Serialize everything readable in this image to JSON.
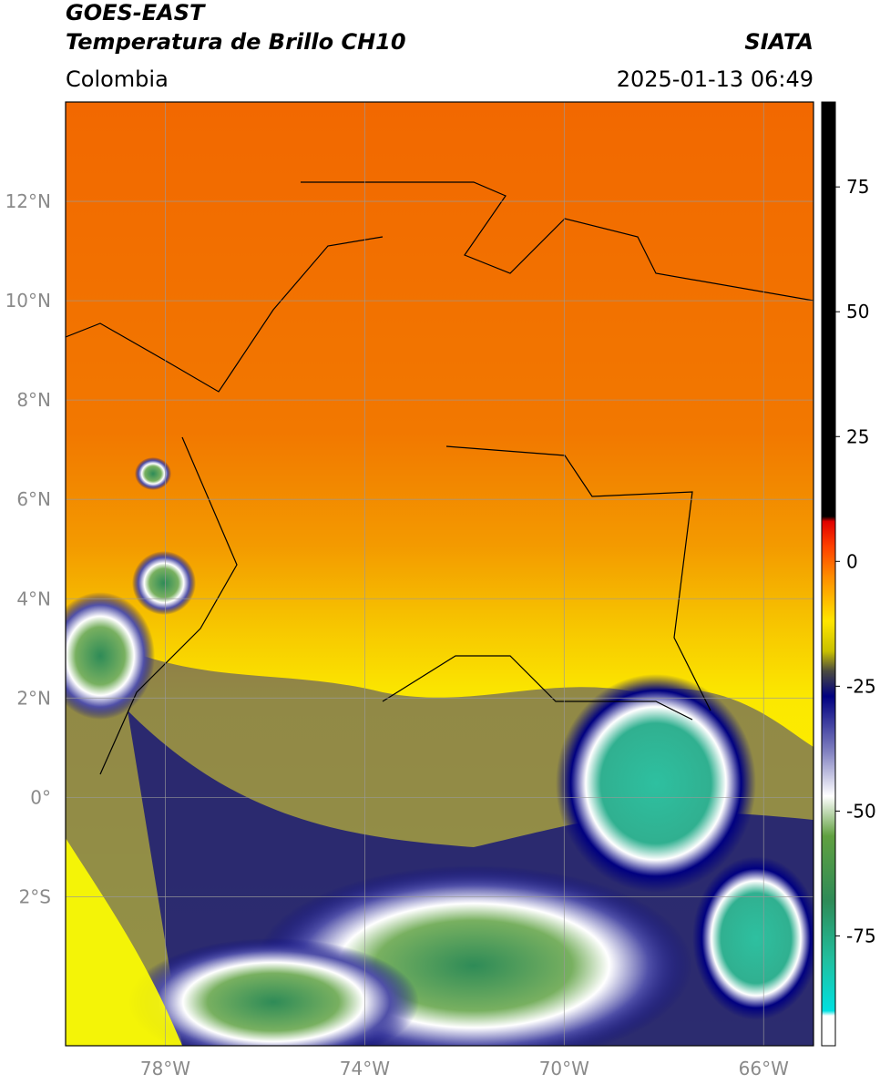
{
  "header": {
    "title_line1": "GOES-EAST",
    "title_line2": "Temperatura de Brillo CH10",
    "region": "Colombia",
    "source": "SIATA",
    "datetime": "2025-01-13 06:49"
  },
  "map": {
    "xlim": [
      -80,
      -65
    ],
    "ylim": [
      -5,
      14
    ],
    "xticks": [
      {
        "value": -78,
        "label": "78°W"
      },
      {
        "value": -74,
        "label": "74°W"
      },
      {
        "value": -70,
        "label": "70°W"
      },
      {
        "value": -66,
        "label": "66°W"
      }
    ],
    "yticks": [
      {
        "value": 12,
        "label": "12°N"
      },
      {
        "value": 10,
        "label": "10°N"
      },
      {
        "value": 8,
        "label": "8°N"
      },
      {
        "value": 6,
        "label": "6°N"
      },
      {
        "value": 4,
        "label": "4°N"
      },
      {
        "value": 2,
        "label": "2°N"
      },
      {
        "value": 0,
        "label": "0°"
      },
      {
        "value": -2,
        "label": "2°S"
      }
    ],
    "grid": true
  },
  "colorbar": {
    "lim": [
      -97,
      92
    ],
    "ticks": [
      75,
      50,
      25,
      0,
      -25,
      -50,
      -75
    ],
    "colors": [
      {
        "value": 92,
        "color": "#000000"
      },
      {
        "value": 9,
        "color": "#000000"
      },
      {
        "value": 8,
        "color": "#e00000"
      },
      {
        "value": 3,
        "color": "#ff4000"
      },
      {
        "value": -3,
        "color": "#ff8c00"
      },
      {
        "value": -12,
        "color": "#ffe600"
      },
      {
        "value": -18,
        "color": "#c8c000"
      },
      {
        "value": -22,
        "color": "#4a4a40"
      },
      {
        "value": -27,
        "color": "#000080"
      },
      {
        "value": -38,
        "color": "#8080c0"
      },
      {
        "value": -47,
        "color": "#ffffff"
      },
      {
        "value": -55,
        "color": "#60a040"
      },
      {
        "value": -68,
        "color": "#2e8b57"
      },
      {
        "value": -80,
        "color": "#20c0a0"
      },
      {
        "value": -90,
        "color": "#00e0e0"
      },
      {
        "value": -91,
        "color": "#ffffff"
      },
      {
        "value": -97,
        "color": "#ffffff"
      }
    ]
  }
}
